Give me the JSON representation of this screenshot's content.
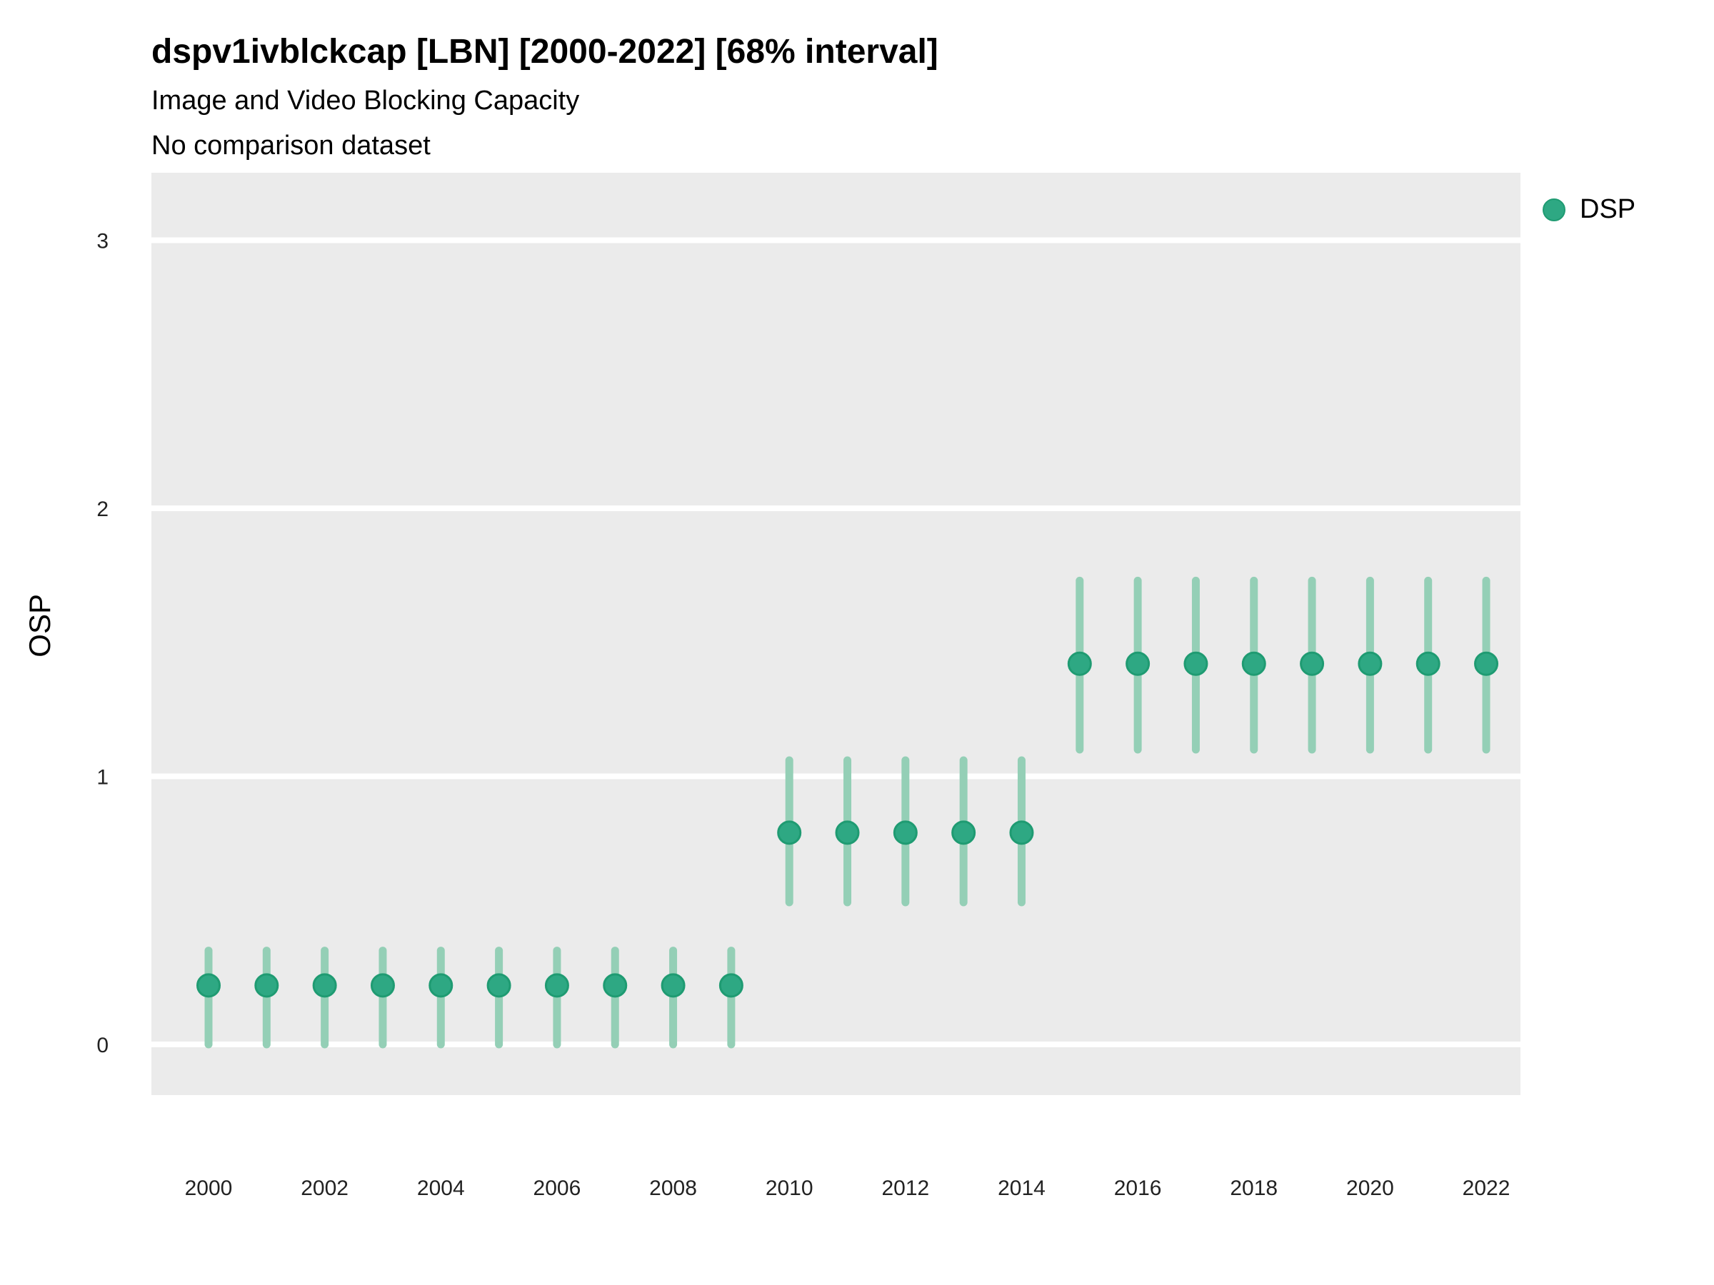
{
  "header": {
    "title": "dspv1ivblckcap [LBN] [2000-2022] [68% interval]",
    "subtitle": "Image and Video Blocking Capacity",
    "note": "No comparison dataset"
  },
  "legend": {
    "position": "right-top",
    "items": [
      {
        "label": "DSP",
        "color": "#2EA883",
        "edge_color": "#1F9B72"
      }
    ]
  },
  "chart_data": {
    "type": "scatter",
    "mark": "pointrange",
    "title": "dspv1ivblckcap [LBN] [2000-2022] [68% interval]",
    "subtitle": "Image and Video Blocking Capacity",
    "note": "No comparison dataset",
    "interval_label": "68% interval",
    "xlabel": "",
    "ylabel": "OSP",
    "grid": "horizontal-major-only",
    "grid_color": "#FFFFFF",
    "panel_bg": "#EBEBEB",
    "page_bg": "#FFFFFF",
    "tick_label_color": "#222222",
    "ylim": [
      -0.19,
      3.25
    ],
    "xlim": [
      1999.0,
      2022.6
    ],
    "y_ticks": [
      0,
      1,
      2,
      3
    ],
    "x_ticks": [
      2000,
      2002,
      2004,
      2006,
      2008,
      2010,
      2012,
      2014,
      2016,
      2018,
      2020,
      2022
    ],
    "legend_position": "right",
    "series": [
      {
        "name": "DSP",
        "point_color": "#2EA883",
        "point_edge_color": "#1F9B72",
        "interval_color": "#94CFB6",
        "points": [
          {
            "x": 2000,
            "y": 0.22,
            "lo": 0.0,
            "hi": 0.35
          },
          {
            "x": 2001,
            "y": 0.22,
            "lo": 0.0,
            "hi": 0.35
          },
          {
            "x": 2002,
            "y": 0.22,
            "lo": 0.0,
            "hi": 0.35
          },
          {
            "x": 2003,
            "y": 0.22,
            "lo": 0.0,
            "hi": 0.35
          },
          {
            "x": 2004,
            "y": 0.22,
            "lo": 0.0,
            "hi": 0.35
          },
          {
            "x": 2005,
            "y": 0.22,
            "lo": 0.0,
            "hi": 0.35
          },
          {
            "x": 2006,
            "y": 0.22,
            "lo": 0.0,
            "hi": 0.35
          },
          {
            "x": 2007,
            "y": 0.22,
            "lo": 0.0,
            "hi": 0.35
          },
          {
            "x": 2008,
            "y": 0.22,
            "lo": 0.0,
            "hi": 0.35
          },
          {
            "x": 2009,
            "y": 0.22,
            "lo": 0.0,
            "hi": 0.35
          },
          {
            "x": 2010,
            "y": 0.79,
            "lo": 0.53,
            "hi": 1.06
          },
          {
            "x": 2011,
            "y": 0.79,
            "lo": 0.53,
            "hi": 1.06
          },
          {
            "x": 2012,
            "y": 0.79,
            "lo": 0.53,
            "hi": 1.06
          },
          {
            "x": 2013,
            "y": 0.79,
            "lo": 0.53,
            "hi": 1.06
          },
          {
            "x": 2014,
            "y": 0.79,
            "lo": 0.53,
            "hi": 1.06
          },
          {
            "x": 2015,
            "y": 1.42,
            "lo": 1.1,
            "hi": 1.73
          },
          {
            "x": 2016,
            "y": 1.42,
            "lo": 1.1,
            "hi": 1.73
          },
          {
            "x": 2017,
            "y": 1.42,
            "lo": 1.1,
            "hi": 1.73
          },
          {
            "x": 2018,
            "y": 1.42,
            "lo": 1.1,
            "hi": 1.73
          },
          {
            "x": 2019,
            "y": 1.42,
            "lo": 1.1,
            "hi": 1.73
          },
          {
            "x": 2020,
            "y": 1.42,
            "lo": 1.1,
            "hi": 1.73
          },
          {
            "x": 2021,
            "y": 1.42,
            "lo": 1.1,
            "hi": 1.73
          },
          {
            "x": 2022,
            "y": 1.42,
            "lo": 1.1,
            "hi": 1.73
          }
        ]
      }
    ]
  }
}
